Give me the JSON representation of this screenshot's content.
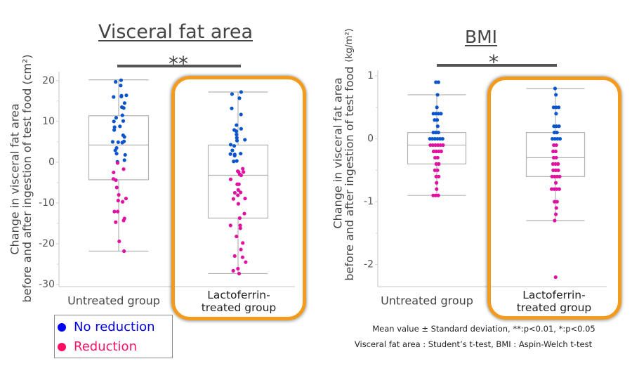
{
  "figure": {
    "footnotes": [
      "Mean value ± Standard deviation, **:p<0.01, *:p<0.05",
      "Visceral fat area : Student’s t-test, BMI : Aspin-Welch t-test"
    ],
    "highlighted_group": "Lactoferrin-treated group"
  },
  "legend": {
    "items": [
      {
        "label": "No reduction",
        "color": "#0000EE"
      },
      {
        "label": "Reduction",
        "color": "#FF1060"
      }
    ]
  },
  "colors": {
    "no_reduction_point": "#0A55CC",
    "reduction_point": "#E010A0",
    "highlight_frame": "#F29B1F",
    "significance_bar": "#555555"
  },
  "chart_data": [
    {
      "type": "scatter",
      "subtype": "box-plot-with-strip",
      "title": "Visceral fat area",
      "ylabel": "Change in visceral fat area before and after ingestion of test food (cm²)",
      "ylabel_lines": [
        "Change in visceral fat area",
        "before and after ingestion of test food"
      ],
      "yunit": "(cm²)",
      "xlabel": "",
      "categories": [
        "Untreated group",
        "Lactoferrin-treated group"
      ],
      "category_label_lines": [
        [
          "Untreated group"
        ],
        [
          "Lactoferrin-",
          "treated group"
        ]
      ],
      "ylim": [
        -30.5,
        22.2
      ],
      "yticks": [
        20,
        10,
        0,
        -10,
        -20,
        -30
      ],
      "minor_ticks": [
        15,
        5,
        -5,
        -15,
        -25
      ],
      "grid": false,
      "legend": "bottom-left",
      "significance": {
        "label": "**",
        "between": [
          "Untreated group",
          "Lactoferrin-treated group"
        ]
      },
      "groups": [
        {
          "name": "Untreated group",
          "box": {
            "whisker_high": 20.2,
            "q3": 11.4,
            "median": 4.2,
            "q1": -4.3,
            "whisker_low": -21.8
          },
          "no_reduction": [
            20.1,
            19.7,
            18.8,
            16.4,
            16.3,
            16.1,
            16.0,
            14.5,
            13.5,
            13.3,
            11.5,
            10.9,
            10.1,
            10.0,
            8.8,
            8.6,
            7.9,
            6.6,
            6.2,
            5.1,
            5.0,
            4.9,
            4.8,
            3.5,
            2.9,
            2.1,
            1.8,
            0.5,
            0.1
          ],
          "reduction": [
            -0.2,
            -1.7,
            -2.5,
            -4.1,
            -4.4,
            -6.2,
            -8.0,
            -8.9,
            -9.4,
            -9.7,
            -12.1,
            -12.1,
            -13.8,
            -14.3,
            -14.7,
            -19.4,
            -21.8
          ]
        },
        {
          "name": "Lactoferrin-treated group",
          "box": {
            "whisker_high": 17.2,
            "q3": 4.2,
            "median": -3.2,
            "q1": -13.7,
            "whisker_low": -27.3
          },
          "no_reduction": [
            17.2,
            16.7,
            15.7,
            13.2,
            11.7,
            9.1,
            8.2,
            7.9,
            7.6,
            6.8,
            6.0,
            5.5,
            5.3,
            4.3,
            4.0,
            2.9,
            2.1,
            2.0,
            1.9,
            1.6,
            0.3,
            0.2
          ],
          "reduction": [
            -1.6,
            -2.2,
            -2.4,
            -2.4,
            -3.0,
            -3.2,
            -4.2,
            -5.4,
            -5.4,
            -6.8,
            -7.4,
            -7.5,
            -8.1,
            -8.9,
            -9.0,
            -10.2,
            -12.6,
            -13.7,
            -15.5,
            -15.5,
            -16.2,
            -18.2,
            -19.8,
            -21.4,
            -23.0,
            -23.3,
            -24.5,
            -26.1,
            -26.6,
            -27.3
          ]
        }
      ]
    },
    {
      "type": "scatter",
      "subtype": "box-plot-with-strip",
      "title": "BMI",
      "ylabel": "Change in visceral fat area before and after ingestion of test food (kg/m²)",
      "ylabel_lines": [
        "Change in visceral fat area",
        "before and after ingestion of test food"
      ],
      "yunit": "(kg/m²)",
      "xlabel": "",
      "categories": [
        "Untreated group",
        "Lactoferrin-treated group"
      ],
      "category_label_lines": [
        [
          "Untreated group"
        ],
        [
          "Lactoferrin-",
          "treated group"
        ]
      ],
      "ylim": [
        -2.35,
        1.09
      ],
      "yticks": [
        1,
        0,
        -1,
        -2
      ],
      "minor_ticks": [
        0.5,
        -0.5,
        -1.5
      ],
      "grid": false,
      "legend": "bottom-left",
      "significance": {
        "label": "*",
        "between": [
          "Untreated group",
          "Lactoferrin-treated group"
        ]
      },
      "groups": [
        {
          "name": "Untreated group",
          "box": {
            "whisker_high": 0.7,
            "q3": 0.1,
            "median": -0.1,
            "q1": -0.4,
            "whisker_low": -0.9
          },
          "no_reduction": [
            0.9,
            0.9,
            0.7,
            0.5,
            0.4,
            0.4,
            0.4,
            0.4,
            0.3,
            0.3,
            0.2,
            0.1,
            0.1,
            0.1,
            0.0,
            0.0,
            0.0,
            0.0,
            0.0,
            0.0
          ],
          "reduction": [
            -0.1,
            -0.1,
            -0.1,
            -0.1,
            -0.1,
            -0.1,
            -0.2,
            -0.2,
            -0.2,
            -0.2,
            -0.3,
            -0.3,
            -0.4,
            -0.4,
            -0.5,
            -0.5,
            -0.6,
            -0.6,
            -0.7,
            -0.8,
            -0.9,
            -0.9,
            -0.9
          ]
        },
        {
          "name": "Lactoferrin-treated group",
          "box": {
            "whisker_high": 0.8,
            "q3": 0.1,
            "median": -0.3,
            "q1": -0.6,
            "whisker_low": -1.3
          },
          "no_reduction": [
            0.8,
            0.7,
            0.5,
            0.5,
            0.5,
            0.4,
            0.2,
            0.2,
            0.2,
            0.1,
            0.1,
            0.0,
            0.0,
            0.0,
            0.0
          ],
          "reduction": [
            -0.1,
            -0.1,
            -0.2,
            -0.2,
            -0.3,
            -0.3,
            -0.4,
            -0.4,
            -0.4,
            -0.5,
            -0.5,
            -0.5,
            -0.6,
            -0.6,
            -0.6,
            -0.6,
            -0.7,
            -0.8,
            -0.8,
            -0.8,
            -0.8,
            -1.0,
            -1.0,
            -1.1,
            -1.2,
            -1.3,
            -2.2
          ]
        }
      ]
    }
  ]
}
